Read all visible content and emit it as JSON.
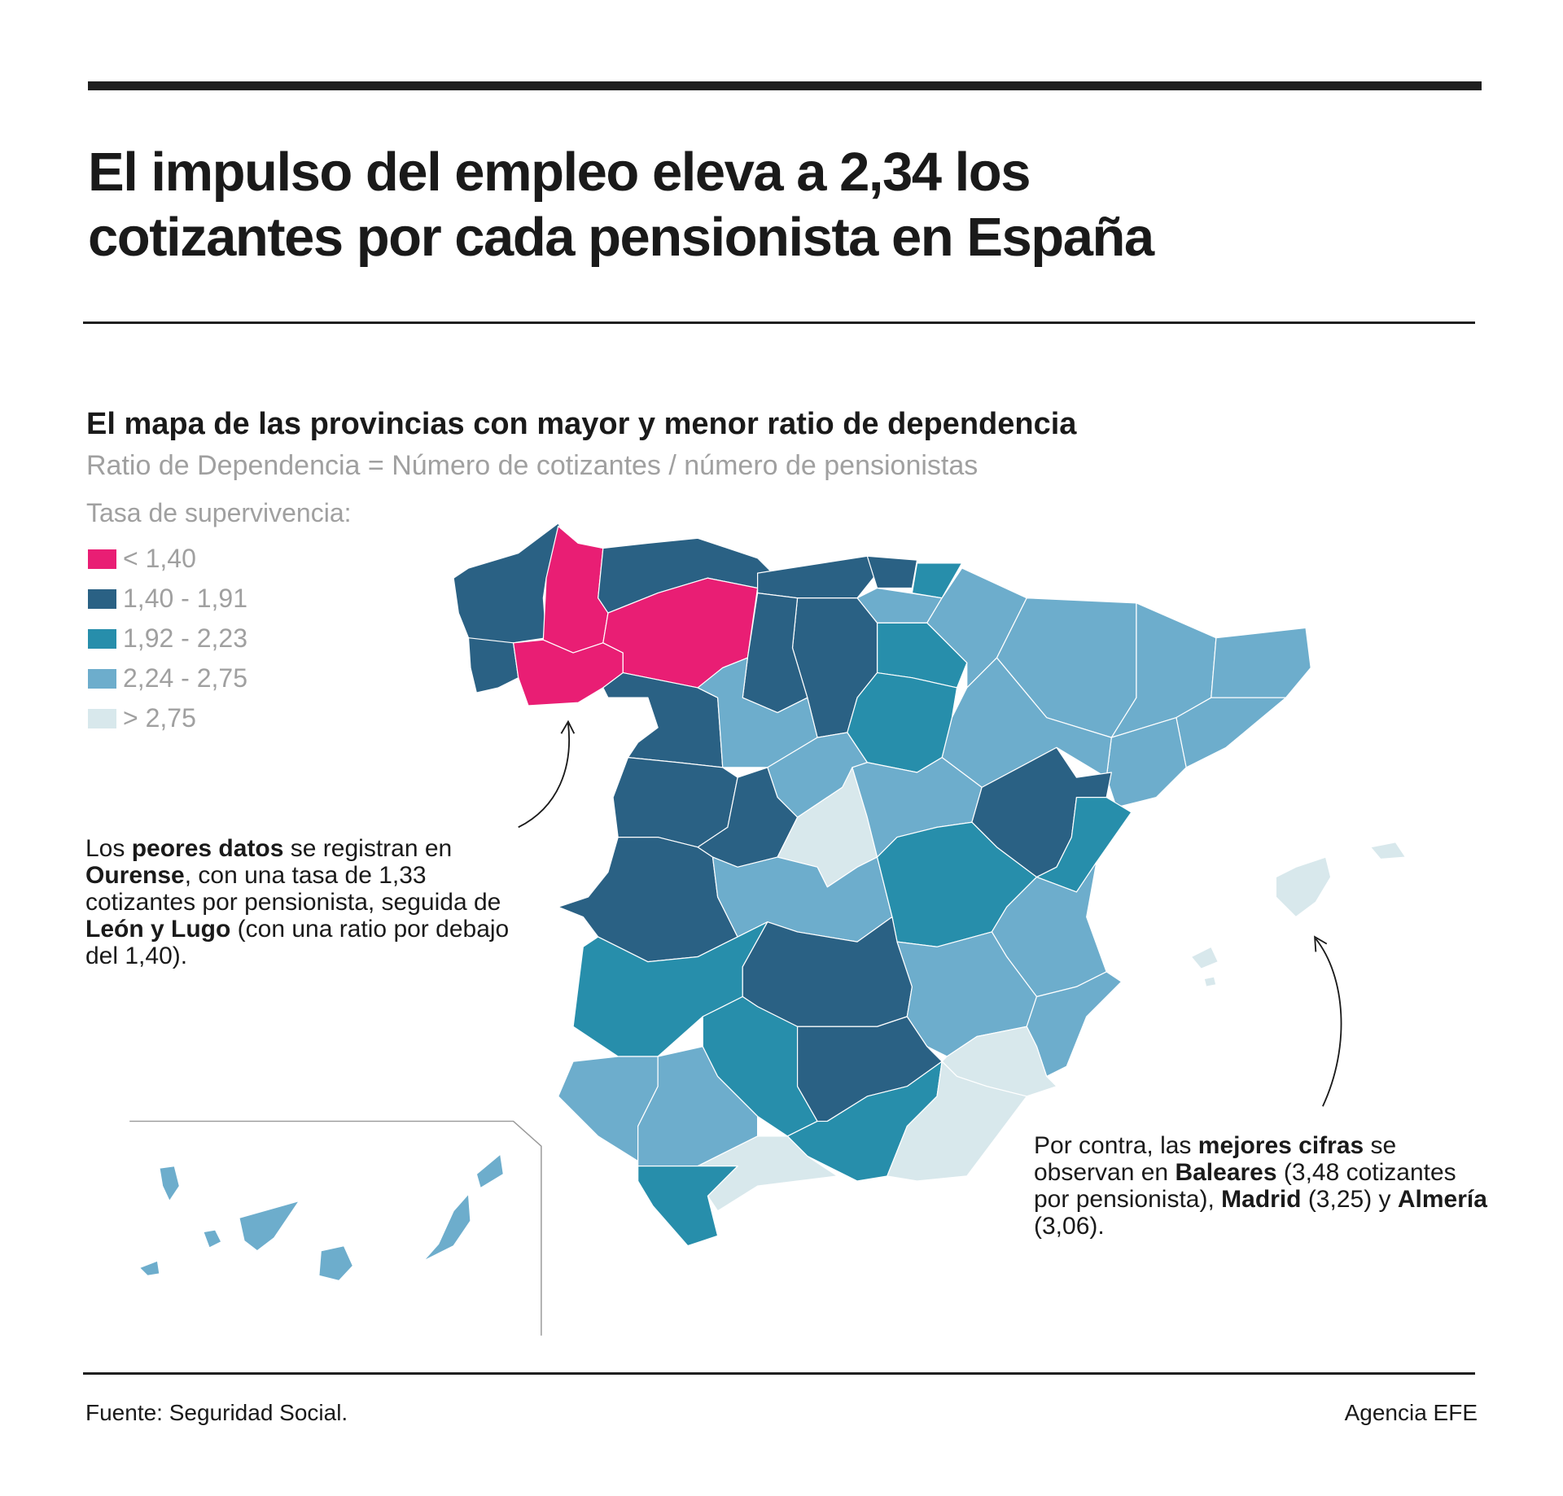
{
  "header": {
    "title_lines": [
      "El impulso del empleo eleva a 2,34 los",
      "cotizantes por cada pensionista en España"
    ]
  },
  "chart": {
    "subtitle": "El mapa de las provincias con mayor y menor ratio de dependencia",
    "formula": "Ratio de Dependencia = Número de cotizantes / número de pensionistas"
  },
  "legend": {
    "title": "Tasa de supervivencia:",
    "items": [
      {
        "label": "< 1,40",
        "color": "#e91e74"
      },
      {
        "label": "1,40 - 1,91",
        "color": "#2a6184"
      },
      {
        "label": "1,92 - 2,23",
        "color": "#278eab"
      },
      {
        "label": "2,24 - 2,75",
        "color": "#6dadcc"
      },
      {
        "label": "> 2,75",
        "color": "#d8e8ec"
      }
    ]
  },
  "map": {
    "region_classes": {
      "A Coruña": 1,
      "Lugo": 0,
      "Pontevedra": 1,
      "Ourense": 0,
      "Asturias": 1,
      "León": 0,
      "Cantabria": 1,
      "Vizcaya": 1,
      "Guipúzcoa": 2,
      "Álava": 3,
      "Navarra": 3,
      "Huesca": 3,
      "Lleida": 3,
      "Girona": 3,
      "Barcelona": 3,
      "Tarragona": 3,
      "Zaragoza": 3,
      "La Rioja": 2,
      "Burgos": 1,
      "Palencia": 1,
      "Soria": 2,
      "Zamora": 1,
      "Valladolid": 3,
      "Segovia": 3,
      "Salamanca": 1,
      "Ávila": 1,
      "Madrid": 4,
      "Guadalajara": 3,
      "Teruel": 1,
      "Castellón": 2,
      "Cáceres": 1,
      "Toledo": 3,
      "Cuenca": 2,
      "Valencia": 3,
      "Badajoz": 2,
      "Ciudad Real": 1,
      "Albacete": 3,
      "Alicante": 3,
      "Murcia": 4,
      "Huelva": 3,
      "Sevilla": 3,
      "Córdoba": 2,
      "Jaén": 1,
      "Granada": 2,
      "Almería": 4,
      "Cádiz": 2,
      "Málaga": 4,
      "Baleares": 4,
      "Canarias": 3
    }
  },
  "annotations": {
    "left": [
      {
        "text": "Los "
      },
      {
        "text": "peores datos",
        "bold": true
      },
      {
        "text": " se registran en "
      },
      {
        "text": "Ourense",
        "bold": true
      },
      {
        "text": ", con una tasa de 1,33 cotizantes por pensionista, seguida de "
      },
      {
        "text": "León y Lugo",
        "bold": true
      },
      {
        "text": " (con una ratio por debajo del 1,40)."
      }
    ],
    "right": [
      {
        "text": "Por contra, las "
      },
      {
        "text": "mejores cifras",
        "bold": true
      },
      {
        "text": " se observan en "
      },
      {
        "text": "Baleares",
        "bold": true
      },
      {
        "text": " (3,48 cotizantes por pensionista), "
      },
      {
        "text": "Madrid",
        "bold": true
      },
      {
        "text": " (3,25) y "
      },
      {
        "text": "Almería",
        "bold": true
      },
      {
        "text": " (3,06)."
      }
    ]
  },
  "footer": {
    "source": "Fuente: Seguridad Social.",
    "credit": "Agencia EFE"
  }
}
